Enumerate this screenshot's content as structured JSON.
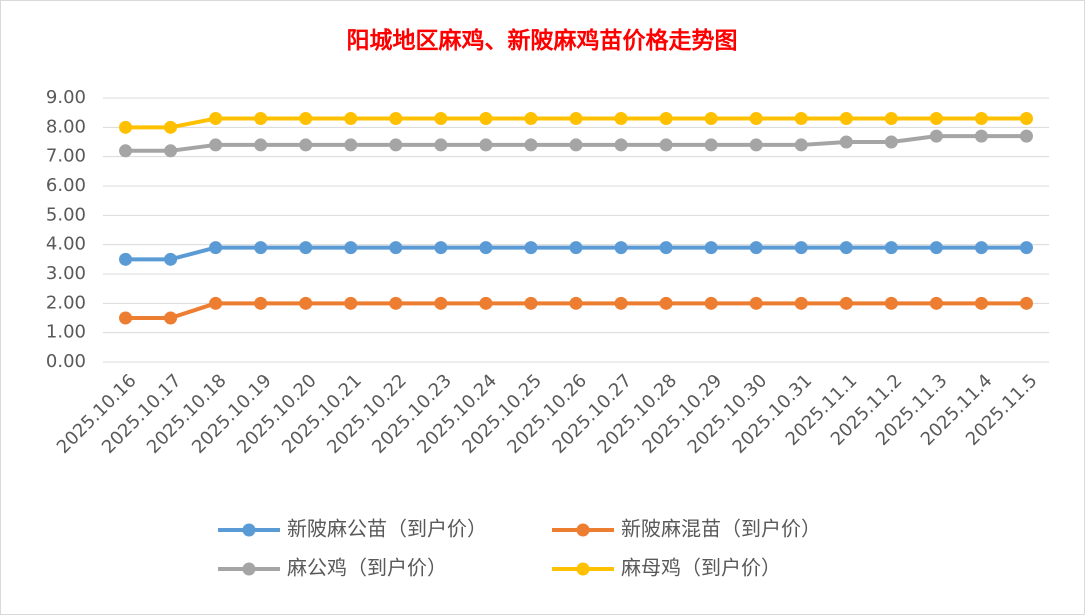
{
  "chart_data": {
    "type": "line",
    "title": "阳城地区麻鸡、新陂麻鸡苗价格走势图",
    "categories": [
      "2025.10.16",
      "2025.10.17",
      "2025.10.18",
      "2025.10.19",
      "2025.10.20",
      "2025.10.21",
      "2025.10.22",
      "2025.10.23",
      "2025.10.24",
      "2025.10.25",
      "2025.10.26",
      "2025.10.27",
      "2025.10.28",
      "2025.10.29",
      "2025.10.30",
      "2025.10.31",
      "2025.11.1",
      "2025.11.2",
      "2025.11.3",
      "2025.11.4",
      "2025.11.5"
    ],
    "series": [
      {
        "name": "新陂麻公苗（到户价）",
        "color": "#5b9bd5",
        "values": [
          3.5,
          3.5,
          3.9,
          3.9,
          3.9,
          3.9,
          3.9,
          3.9,
          3.9,
          3.9,
          3.9,
          3.9,
          3.9,
          3.9,
          3.9,
          3.9,
          3.9,
          3.9,
          3.9,
          3.9,
          3.9
        ]
      },
      {
        "name": "新陂麻混苗（到户价）",
        "color": "#ed7d31",
        "values": [
          1.5,
          1.5,
          2.0,
          2.0,
          2.0,
          2.0,
          2.0,
          2.0,
          2.0,
          2.0,
          2.0,
          2.0,
          2.0,
          2.0,
          2.0,
          2.0,
          2.0,
          2.0,
          2.0,
          2.0,
          2.0
        ]
      },
      {
        "name": "麻公鸡（到户价）",
        "color": "#a5a5a5",
        "values": [
          7.2,
          7.2,
          7.4,
          7.4,
          7.4,
          7.4,
          7.4,
          7.4,
          7.4,
          7.4,
          7.4,
          7.4,
          7.4,
          7.4,
          7.4,
          7.4,
          7.5,
          7.5,
          7.7,
          7.7,
          7.7
        ]
      },
      {
        "name": "麻母鸡（到户价）",
        "color": "#ffc000",
        "values": [
          8.0,
          8.0,
          8.3,
          8.3,
          8.3,
          8.3,
          8.3,
          8.3,
          8.3,
          8.3,
          8.3,
          8.3,
          8.3,
          8.3,
          8.3,
          8.3,
          8.3,
          8.3,
          8.3,
          8.3,
          8.3
        ]
      }
    ],
    "ylim": [
      0,
      9
    ],
    "yticks": [
      {
        "value": 0,
        "label": "0.00"
      },
      {
        "value": 1,
        "label": "1.00"
      },
      {
        "value": 2,
        "label": "2.00"
      },
      {
        "value": 3,
        "label": "3.00"
      },
      {
        "value": 4,
        "label": "4.00"
      },
      {
        "value": 5,
        "label": "5.00"
      },
      {
        "value": 6,
        "label": "6.00"
      },
      {
        "value": 7,
        "label": "7.00"
      },
      {
        "value": 8,
        "label": "8.00"
      },
      {
        "value": 9,
        "label": "9.00"
      }
    ],
    "grid": true,
    "title_color": "#ff0000",
    "legend": "bottom"
  }
}
